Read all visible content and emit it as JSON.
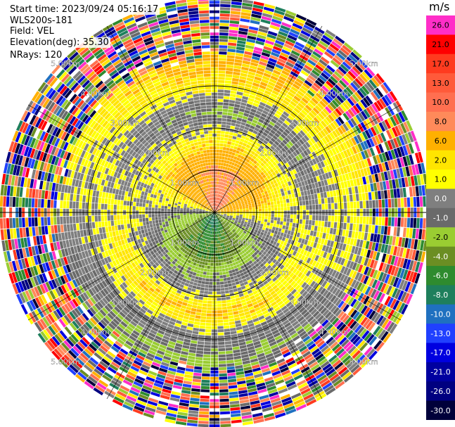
{
  "header": {
    "start_time": "Start time: 2023/09/24 05:16:17",
    "instrument": "WLS200s-181",
    "field": "Field: VEL",
    "elevation": "Elevation(deg): 35.30",
    "nrays": "NRays: 120"
  },
  "chart_data": {
    "type": "ppi",
    "field": "VEL",
    "units": "m/s",
    "nrays": 120,
    "elevation_deg": 35.3,
    "range_ring_labels": [
      "1.00km",
      "2.00km",
      "3.00km",
      "4.00km",
      "5.00km"
    ],
    "range_rings_km": [
      1,
      2,
      3,
      4,
      5
    ],
    "colorbar": {
      "ticks": [
        "26.0",
        "21.0",
        "17.0",
        "13.0",
        "10.0",
        "8.0",
        "6.0",
        "2.0",
        "1.0",
        "0.0",
        "-1.0",
        "-2.0",
        "-4.0",
        "-6.0",
        "-8.0",
        "-10.0",
        "-13.0",
        "-17.0",
        "-21.0",
        "-26.0",
        "-30.0"
      ],
      "colors": [
        "#ff2ec8",
        "#ff0000",
        "#ff3b1f",
        "#ff5a3a",
        "#ff6f50",
        "#ff8a5a",
        "#ffb000",
        "#ffe500",
        "#ffff00",
        "#7f7f7f",
        "#6a6a6a",
        "#9acd32",
        "#6b8e23",
        "#2e8b2e",
        "#1e7f5c",
        "#1f70c0",
        "#2040ff",
        "#0000e0",
        "#0000a0",
        "#000080",
        "#00003a"
      ]
    },
    "radial_profile": [
      {
        "range_km": 0.3,
        "velocity_ms": 8.0
      },
      {
        "range_km": 0.6,
        "velocity_ms": 6.0
      },
      {
        "range_km": 1.0,
        "velocity_ms": 6.0
      },
      {
        "range_km": 1.5,
        "velocity_ms": 2.0
      },
      {
        "range_km": 2.0,
        "velocity_ms": 0.0
      },
      {
        "range_km": 2.4,
        "velocity_ms": -2.0
      },
      {
        "range_km": 3.0,
        "velocity_ms": 1.0
      },
      {
        "range_km": 3.5,
        "velocity_ms": 2.0
      }
    ],
    "clutter_beyond_km": 3.6
  }
}
